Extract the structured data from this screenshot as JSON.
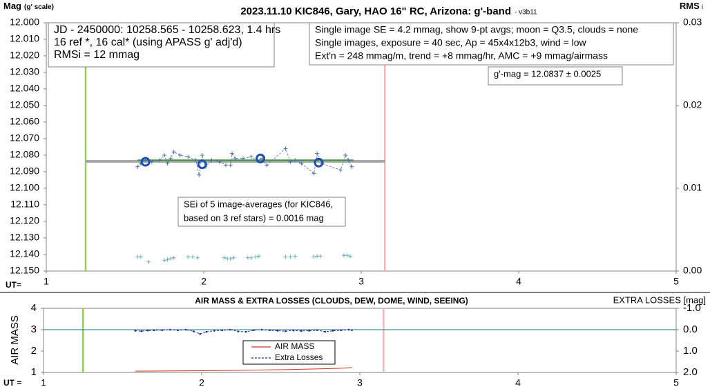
{
  "chart_data": [
    {
      "type": "scatter",
      "title": "2023.11.10 KIC846, Gary, HAO 16\" RC, Arizona: g'-band",
      "subtitle": "- v3b11",
      "ylabel": "Mag",
      "ylabel_note": "(g' scale)",
      "y2label": "RMS",
      "y2label_note": "i",
      "xlabel": "UT=",
      "xlim": [
        1,
        5
      ],
      "xticks": [
        1,
        2,
        3,
        4,
        5
      ],
      "ylim": [
        12.15,
        12.0
      ],
      "yticks": [
        {
          "value": 12.0,
          "label": "12.000"
        },
        {
          "value": 12.01,
          "label": "12.010"
        },
        {
          "value": 12.02,
          "label": "12.020"
        },
        {
          "value": 12.03,
          "label": "12.030"
        },
        {
          "value": 12.04,
          "label": "12.040"
        },
        {
          "value": 12.05,
          "label": "12.050"
        },
        {
          "value": 12.06,
          "label": "12.060"
        },
        {
          "value": 12.07,
          "label": "12.070"
        },
        {
          "value": 12.08,
          "label": "12.080"
        },
        {
          "value": 12.09,
          "label": "12.090"
        },
        {
          "value": 12.1,
          "label": "12.100"
        },
        {
          "value": 12.11,
          "label": "12.110"
        },
        {
          "value": 12.12,
          "label": "12.120"
        },
        {
          "value": 12.13,
          "label": "12.130"
        },
        {
          "value": 12.14,
          "label": "12.140"
        },
        {
          "value": 12.15,
          "label": "12.150"
        }
      ],
      "y2lim": [
        0,
        0.03
      ],
      "y2ticks": [
        {
          "value": 0,
          "label": "0.00"
        },
        {
          "value": 0.01,
          "label": "0.01"
        },
        {
          "value": 0.02,
          "label": "0.02"
        },
        {
          "value": 0.03,
          "label": "0.03"
        }
      ],
      "grid": false,
      "vlines": [
        {
          "x": 1.25,
          "color": "#92d050"
        },
        {
          "x": 3.15,
          "color": "#f4b8b8"
        }
      ],
      "series": [
        {
          "color": "#a6a6a6",
          "width": 4,
          "marker": "none",
          "x": [
            1.25,
            3.15
          ],
          "values": [
            12.0837,
            12.0837
          ]
        },
        {
          "color": "#3a9a3a",
          "width": 2,
          "marker": "none",
          "x": [
            1.58,
            2.95
          ],
          "values": [
            12.083,
            12.083
          ]
        },
        {
          "color": "#4a6fa8",
          "width": 0.8,
          "dashed": true,
          "marker": "plus",
          "x": [
            1.58,
            1.6,
            1.63,
            1.67,
            1.72,
            1.75,
            1.77,
            1.79,
            1.81,
            1.85,
            1.9,
            1.95,
            1.97,
            1.99,
            2.01,
            2.05,
            2.1,
            2.14,
            2.17,
            2.18,
            2.2,
            2.25,
            2.3,
            2.34,
            2.37,
            2.4,
            2.52,
            2.55,
            2.58,
            2.62,
            2.7,
            2.72,
            2.75,
            2.87,
            2.9,
            2.92,
            2.94
          ],
          "values": [
            12.087,
            12.085,
            12.083,
            12.084,
            12.083,
            12.08,
            12.085,
            12.082,
            12.078,
            12.08,
            12.081,
            12.083,
            12.092,
            12.08,
            12.087,
            12.083,
            12.084,
            12.086,
            12.086,
            12.079,
            12.082,
            12.082,
            12.081,
            12.083,
            12.082,
            12.086,
            12.076,
            12.084,
            12.083,
            12.085,
            12.091,
            12.079,
            12.085,
            12.089,
            12.08,
            12.083,
            12.087
          ]
        },
        {
          "color": "#1f4fb4",
          "width": 0,
          "marker": "circle",
          "x": [
            1.63,
            1.99,
            2.36,
            2.73
          ],
          "values": [
            12.084,
            12.0855,
            12.082,
            12.0845
          ]
        },
        {
          "color": "#6aaec0",
          "width": 0,
          "marker": "plus",
          "axis": "y2",
          "x": [
            1.58,
            1.6,
            1.65,
            1.75,
            1.77,
            1.79,
            1.81,
            1.9,
            1.93,
            1.96,
            2.13,
            2.15,
            2.17,
            2.19,
            2.28,
            2.3,
            2.33,
            2.35,
            2.52,
            2.55,
            2.58,
            2.7,
            2.72,
            2.74,
            2.89,
            2.91,
            2.93
          ],
          "values": [
            0.0017,
            0.0017,
            0.0011,
            0.0013,
            0.0014,
            0.0015,
            0.0016,
            0.0017,
            0.0017,
            0.0016,
            0.0016,
            0.0015,
            0.0015,
            0.0016,
            0.0016,
            0.0016,
            0.0017,
            0.0018,
            0.0017,
            0.0017,
            0.0018,
            0.0017,
            0.0018,
            0.0018,
            0.0019,
            0.0019,
            0.0018
          ]
        }
      ],
      "annotations": [
        {
          "lines": [
            "JD - 2450000: 10258.565 - 10258.623, 1.4 hrs",
            "16 ref *, 16 cal* (using APASS g' adj'd)",
            "RMSi = 12 mmag"
          ]
        },
        {
          "lines": [
            "Single image SE = 4.2 mmag, show  9-pt avgs; moon = Q3.5, clouds = none",
            "Single images, exposure = 40 sec, Ap = 45x4x12b3, wind = low",
            "Ext'n = 248 mmag/m, trend = +8 mmag/hr, AMC = +9 mmag/airmass"
          ]
        },
        {
          "lines": [
            "g'-mag = 12.0837 ± 0.0025"
          ]
        },
        {
          "lines": [
            "SEi of 5 image-averages (for KIC846,",
            "based on 3 ref stars) = 0.0016 mag"
          ]
        }
      ]
    },
    {
      "type": "line",
      "title": "AIR MASS & EXTRA LOSSES (CLOUDS, DEW, DOME, WIND, SEEING)",
      "ylabel": "AIR MASS",
      "y2label": "EXTRA LOSSES [mag]",
      "xlabel": "UT =",
      "xlim": [
        1,
        5
      ],
      "xticks": [
        1,
        2,
        3,
        4,
        5
      ],
      "ylim": [
        1,
        4
      ],
      "yticks": [
        1,
        2,
        3,
        4
      ],
      "y2lim": [
        2.0,
        -1.0
      ],
      "y2ticks": [
        {
          "value": -1.0,
          "label": "-1.0"
        },
        {
          "value": 0,
          "label": "0.0"
        },
        {
          "value": 1.0,
          "label": "1.0"
        },
        {
          "value": 2.0,
          "label": "2.0"
        }
      ],
      "grid": false,
      "legend": "center",
      "vlines": [
        {
          "x": 1.25,
          "color": "#92d050"
        },
        {
          "x": 3.15,
          "color": "#f4b8b8"
        }
      ],
      "series": [
        {
          "color": "#1f6f8b",
          "width": 1,
          "marker": "none",
          "axis": "y2",
          "x": [
            1,
            5
          ],
          "values": [
            0,
            0
          ]
        },
        {
          "name": "AIR MASS",
          "color": "#d03020",
          "width": 1,
          "marker": "none",
          "x": [
            1.58,
            1.75,
            2.0,
            2.25,
            2.5,
            2.75,
            2.9,
            2.95
          ],
          "values": [
            1.06,
            1.07,
            1.08,
            1.1,
            1.13,
            1.17,
            1.2,
            1.23
          ]
        },
        {
          "name": "Extra Losses",
          "color": "#1a2f8f",
          "width": 1,
          "dashed": true,
          "marker": "dot",
          "axis": "y2",
          "x": [
            1.58,
            1.62,
            1.66,
            1.7,
            1.75,
            1.8,
            1.85,
            1.9,
            1.95,
            1.99,
            2.03,
            2.08,
            2.13,
            2.18,
            2.23,
            2.28,
            2.33,
            2.38,
            2.43,
            2.48,
            2.53,
            2.58,
            2.63,
            2.68,
            2.73,
            2.78,
            2.83,
            2.88,
            2.93,
            2.95
          ],
          "values": [
            0.05,
            0.07,
            0.04,
            0.03,
            0.02,
            0.0,
            0.03,
            0.0,
            0.08,
            0.2,
            0.1,
            0.05,
            0.03,
            0.0,
            0.08,
            0.1,
            0.02,
            0.0,
            0.03,
            0.05,
            0.07,
            0.04,
            0.06,
            0.05,
            0.02,
            0.1,
            0.05,
            0.03,
            0.0,
            0.02
          ]
        }
      ]
    }
  ]
}
